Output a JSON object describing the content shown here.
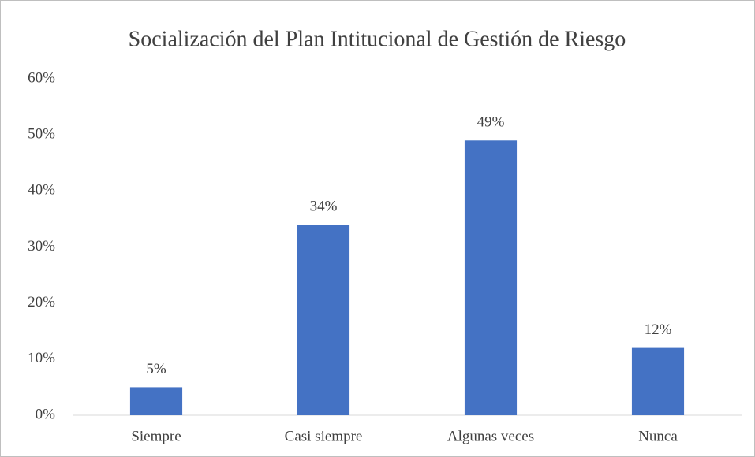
{
  "chart_data": {
    "type": "bar",
    "title": "Socialización del Plan Intitucional de Gestión de Riesgo",
    "categories": [
      "Siempre",
      "Casi siempre",
      "Algunas veces",
      "Nunca"
    ],
    "values": [
      5,
      34,
      49,
      12
    ],
    "value_labels": [
      "5%",
      "34%",
      "49%",
      "12%"
    ],
    "color": "#4472c4",
    "ylim": [
      0,
      60
    ],
    "yticks": [
      {
        "value": 0,
        "label": "0%"
      },
      {
        "value": 10,
        "label": "10%"
      },
      {
        "value": 20,
        "label": "20%"
      },
      {
        "value": 30,
        "label": "30%"
      },
      {
        "value": 40,
        "label": "40%"
      },
      {
        "value": 50,
        "label": "50%"
      },
      {
        "value": 60,
        "label": "60%"
      }
    ],
    "grid": false
  }
}
